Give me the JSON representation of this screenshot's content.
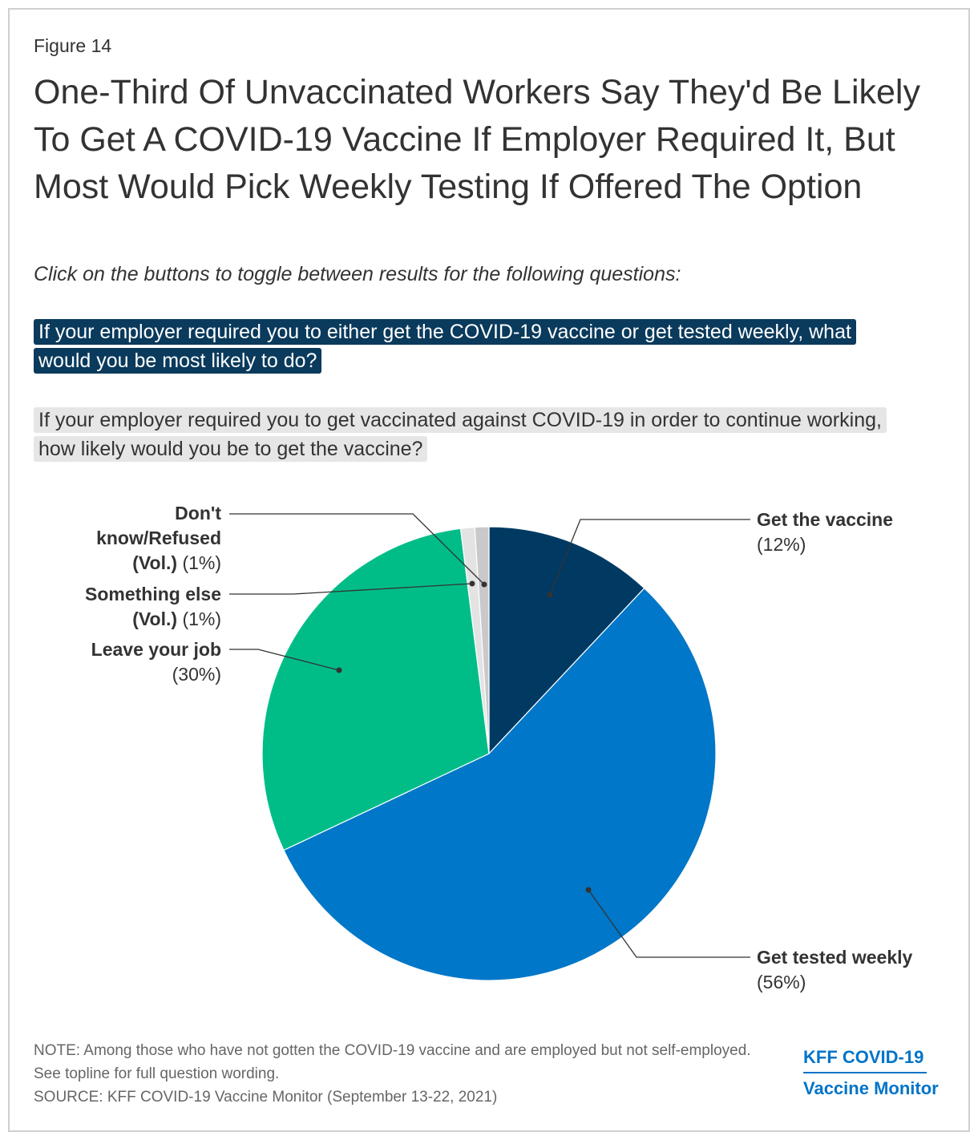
{
  "figure_label": "Figure 14",
  "title": "One-Third Of Unvaccinated Workers Say They'd Be Likely To Get A COVID-19 Vaccine If Employer Required It, But Most Would Pick Weekly Testing If Offered The Option",
  "subtitle": "Click on the buttons to toggle between results for the following questions:",
  "toggles": [
    {
      "label": "If your employer required you to either get the COVID-19 vaccine or get tested weekly, what would you be most likely to do?",
      "active": true
    },
    {
      "label": "If your employer required you to get vaccinated against COVID-19 in order to continue working, how likely would you be to get the vaccine?",
      "active": false
    }
  ],
  "chart_data": {
    "type": "pie",
    "title": "If your employer required you to either get the COVID-19 vaccine or get tested weekly, what would you be most likely to do?",
    "slices": [
      {
        "name": "Get the vaccine",
        "value": 12,
        "value_label": "(12%)",
        "color": "#003a63"
      },
      {
        "name": "Get tested weekly",
        "value": 56,
        "value_label": "(56%)",
        "color": "#0077c8"
      },
      {
        "name": "Leave your job",
        "value": 30,
        "value_label": "(30%)",
        "color": "#00bd87"
      },
      {
        "name": "Something else (Vol.)",
        "value": 1,
        "value_label": "(1%)",
        "color": "#e3e3e3"
      },
      {
        "name": "Don't know/Refused (Vol.)",
        "value": 1,
        "value_label": "(1%)",
        "color": "#c9c9c9"
      }
    ],
    "labels": {
      "get_vaccine": {
        "name": "Get the vaccine",
        "pct": "(12%)"
      },
      "get_tested": {
        "name": "Get tested weekly",
        "pct": "(56%)"
      },
      "leave_job": {
        "name_line1": "Leave your job",
        "pct": "(30%)"
      },
      "something_else": {
        "name_line1": "Something else",
        "name_line2": "(Vol.)",
        "pct": "(1%)"
      },
      "dont_know": {
        "name_line1": "Don't",
        "name_line2": "know/Refused",
        "name_line3": "(Vol.)",
        "pct": "(1%)"
      }
    }
  },
  "note": "NOTE: Among those who have not gotten the COVID-19 vaccine and are employed but not self-employed. See topline for full question wording.",
  "source": "SOURCE: KFF COVID-19 Vaccine Monitor (September 13-22, 2021)",
  "logo": {
    "line1": "KFF COVID-19",
    "line2": "Vaccine Monitor"
  }
}
